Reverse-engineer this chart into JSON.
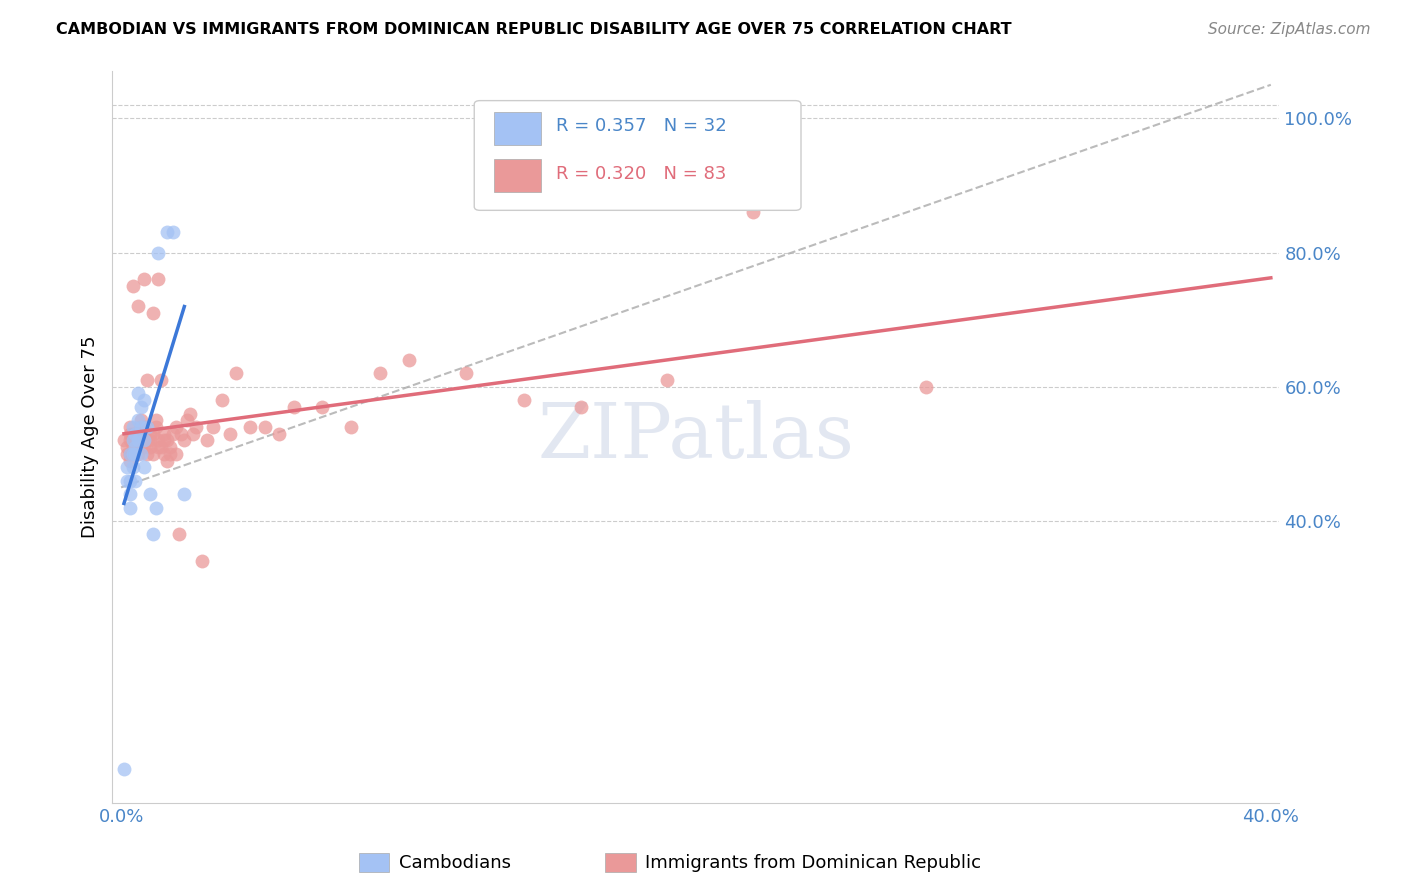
{
  "title": "CAMBODIAN VS IMMIGRANTS FROM DOMINICAN REPUBLIC DISABILITY AGE OVER 75 CORRELATION CHART",
  "source": "Source: ZipAtlas.com",
  "ylabel": "Disability Age Over 75",
  "cambodian_color": "#a4c2f4",
  "dominican_color": "#ea9999",
  "cambodian_line_color": "#3c78d8",
  "dominican_line_color": "#e06c7a",
  "grid_color": "#cccccc",
  "background_color": "#ffffff",
  "watermark": "ZIPatlas",
  "legend_R_cambodian": "0.357",
  "legend_N_cambodian": "32",
  "legend_R_dominican": "0.320",
  "legend_N_dominican": "83",
  "axis_color": "#4a86c8",
  "cambodian_x": [
    0.001,
    0.002,
    0.002,
    0.003,
    0.003,
    0.003,
    0.003,
    0.004,
    0.004,
    0.004,
    0.004,
    0.005,
    0.005,
    0.005,
    0.005,
    0.006,
    0.006,
    0.006,
    0.007,
    0.007,
    0.007,
    0.008,
    0.008,
    0.008,
    0.009,
    0.01,
    0.011,
    0.012,
    0.013,
    0.016,
    0.018,
    0.022
  ],
  "cambodian_y": [
    0.03,
    0.46,
    0.48,
    0.5,
    0.44,
    0.42,
    0.46,
    0.5,
    0.52,
    0.54,
    0.48,
    0.5,
    0.51,
    0.53,
    0.46,
    0.52,
    0.55,
    0.59,
    0.54,
    0.57,
    0.5,
    0.58,
    0.52,
    0.48,
    0.54,
    0.44,
    0.38,
    0.42,
    0.8,
    0.83,
    0.83,
    0.44
  ],
  "dominican_x": [
    0.001,
    0.002,
    0.002,
    0.003,
    0.003,
    0.003,
    0.003,
    0.003,
    0.004,
    0.004,
    0.004,
    0.004,
    0.004,
    0.005,
    0.005,
    0.005,
    0.005,
    0.006,
    0.006,
    0.006,
    0.006,
    0.006,
    0.007,
    0.007,
    0.007,
    0.007,
    0.008,
    0.008,
    0.008,
    0.008,
    0.009,
    0.009,
    0.009,
    0.01,
    0.01,
    0.01,
    0.011,
    0.011,
    0.011,
    0.012,
    0.012,
    0.013,
    0.013,
    0.013,
    0.014,
    0.014,
    0.015,
    0.015,
    0.015,
    0.016,
    0.016,
    0.017,
    0.017,
    0.018,
    0.019,
    0.019,
    0.02,
    0.021,
    0.022,
    0.023,
    0.024,
    0.025,
    0.026,
    0.028,
    0.03,
    0.032,
    0.035,
    0.038,
    0.04,
    0.045,
    0.05,
    0.055,
    0.06,
    0.07,
    0.08,
    0.09,
    0.1,
    0.12,
    0.14,
    0.16,
    0.19,
    0.22,
    0.28
  ],
  "dominican_y": [
    0.52,
    0.5,
    0.51,
    0.5,
    0.52,
    0.53,
    0.49,
    0.54,
    0.51,
    0.52,
    0.5,
    0.53,
    0.75,
    0.52,
    0.51,
    0.53,
    0.5,
    0.52,
    0.51,
    0.5,
    0.53,
    0.72,
    0.52,
    0.54,
    0.51,
    0.55,
    0.52,
    0.51,
    0.54,
    0.76,
    0.5,
    0.52,
    0.61,
    0.53,
    0.51,
    0.52,
    0.5,
    0.53,
    0.71,
    0.54,
    0.55,
    0.52,
    0.51,
    0.76,
    0.51,
    0.61,
    0.52,
    0.5,
    0.53,
    0.49,
    0.52,
    0.51,
    0.5,
    0.53,
    0.54,
    0.5,
    0.38,
    0.53,
    0.52,
    0.55,
    0.56,
    0.53,
    0.54,
    0.34,
    0.52,
    0.54,
    0.58,
    0.53,
    0.62,
    0.54,
    0.54,
    0.53,
    0.57,
    0.57,
    0.54,
    0.62,
    0.64,
    0.62,
    0.58,
    0.57,
    0.61,
    0.86,
    0.6
  ],
  "xlim_min": 0.0,
  "xlim_max": 0.4,
  "ylim_min": 0.0,
  "ylim_max": 1.05,
  "yticks": [
    0.4,
    0.6,
    0.8,
    1.0
  ],
  "xtick_positions": [
    0.0,
    0.05,
    0.1,
    0.15,
    0.2,
    0.25,
    0.3,
    0.35,
    0.4
  ]
}
